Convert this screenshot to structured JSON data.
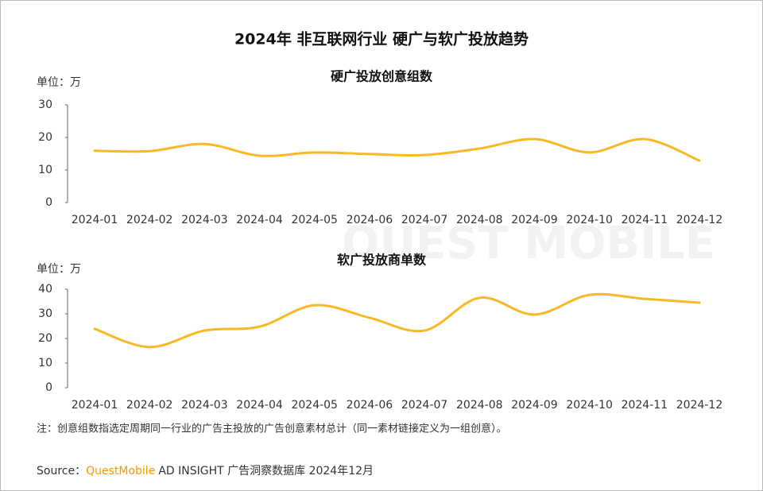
{
  "title": "2024年 非互联网行业 硬广与软广投放趋势",
  "watermark": "QUEST MOBILE",
  "note": "注：创意组数指选定周期同一行业的广告主投放的广告创意素材总计（同一素材链接定义为一组创意）。",
  "source": {
    "label": "Source：",
    "brand": "QuestMobile",
    "text": "AD INSIGHT 广告洞察数据库 2024年12月"
  },
  "chart_data": [
    {
      "type": "line",
      "title": "硬广投放创意组数",
      "unit": "单位：万",
      "categories": [
        "2024-01",
        "2024-02",
        "2024-03",
        "2024-04",
        "2024-05",
        "2024-06",
        "2024-07",
        "2024-08",
        "2024-09",
        "2024-10",
        "2024-11",
        "2024-12"
      ],
      "series": [
        {
          "name": "硬广投放创意组数",
          "color": "#f9b826",
          "values": [
            15.9,
            15.8,
            18,
            14.4,
            15.4,
            14.9,
            14.6,
            16.6,
            19.5,
            15.4,
            19.5,
            12.9
          ]
        }
      ],
      "ylim": [
        0,
        30
      ],
      "yticks": [
        0,
        10,
        20,
        30
      ],
      "smooth": true
    },
    {
      "type": "line",
      "title": "软广投放商单数",
      "unit": "单位：万",
      "categories": [
        "2024-01",
        "2024-02",
        "2024-03",
        "2024-04",
        "2024-05",
        "2024-06",
        "2024-07",
        "2024-08",
        "2024-09",
        "2024-10",
        "2024-11",
        "2024-12"
      ],
      "series": [
        {
          "name": "软广投放商单数",
          "color": "#f9b826",
          "values": [
            23.9,
            16.5,
            23.2,
            24.8,
            33.5,
            28.4,
            23.2,
            36.5,
            29.7,
            37.7,
            36.1,
            34.5
          ]
        }
      ],
      "ylim": [
        0,
        40
      ],
      "yticks": [
        0,
        10,
        20,
        30,
        40
      ],
      "smooth": true
    }
  ]
}
